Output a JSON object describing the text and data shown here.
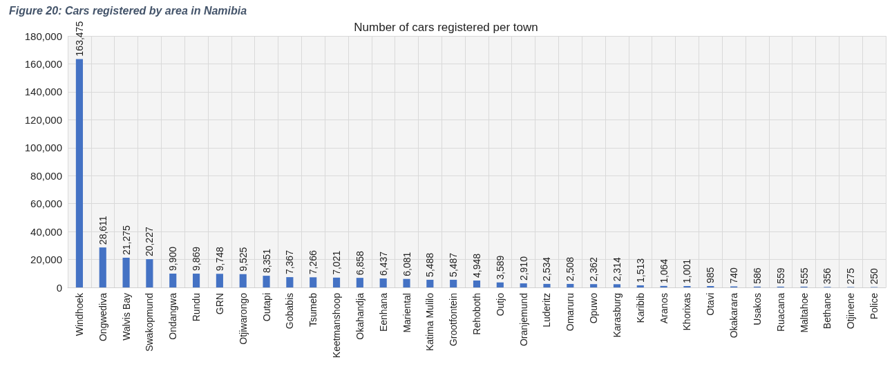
{
  "chart_data": {
    "type": "bar",
    "title": "Number of cars registered per town",
    "annotations": [
      "Figure 20: Cars registered by area in Namibia"
    ],
    "categories": [
      "Windhoek",
      "Ongwediva",
      "Walvis Bay",
      "Swakopmund",
      "Ondangwa",
      "Rundu",
      "GRN",
      "Otjiwarongo",
      "Outapi",
      "Gobabis",
      "Tsumeb",
      "Keetmanshoop",
      "Okahandja",
      "Eenhana",
      "Mariental",
      "Katima Mulilo",
      "Grootfontein",
      "Rehoboth",
      "Outjo",
      "Oranjemund",
      "Luderitz",
      "Omaruru",
      "Opuwo",
      "Karasburg",
      "Karibib",
      "Aranos",
      "Khorixas",
      "Otavi",
      "Okakarara",
      "Usakos",
      "Ruacana",
      "Maltahoe",
      "Bethane",
      "Otjinene",
      "Police"
    ],
    "values": [
      163475,
      28611,
      21275,
      20227,
      9900,
      9869,
      9748,
      9525,
      8351,
      7367,
      7266,
      7021,
      6858,
      6437,
      6081,
      5488,
      5487,
      4948,
      3589,
      2910,
      2534,
      2508,
      2362,
      2314,
      1513,
      1064,
      1001,
      985,
      740,
      586,
      559,
      555,
      356,
      275,
      250
    ],
    "color": "#4472c4",
    "ylim": [
      0,
      180000
    ],
    "yticks": [
      {
        "value": 0,
        "label": "0"
      },
      {
        "value": 20000,
        "label": "20,000"
      },
      {
        "value": 40000,
        "label": "40,000"
      },
      {
        "value": 60000,
        "label": "60,000"
      },
      {
        "value": 80000,
        "label": "80,000"
      },
      {
        "value": 100000,
        "label": "100,000"
      },
      {
        "value": 120000,
        "label": "120,000"
      },
      {
        "value": 140000,
        "label": "140,000"
      },
      {
        "value": 160000,
        "label": "160,000"
      },
      {
        "value": 180000,
        "label": "180,000"
      }
    ],
    "value_labels": [
      "163,475",
      "28,611",
      "21,275",
      "20,227",
      "9,900",
      "9,869",
      "9,748",
      "9,525",
      "8,351",
      "7,367",
      "7,266",
      "7,021",
      "6,858",
      "6,437",
      "6,081",
      "5,488",
      "5,487",
      "4,948",
      "3,589",
      "2,910",
      "2,534",
      "2,508",
      "2,362",
      "2,314",
      "1,513",
      "1,064",
      "1,001",
      "985",
      "740",
      "586",
      "559",
      "555",
      "356",
      "275",
      "250"
    ],
    "grid": true
  }
}
